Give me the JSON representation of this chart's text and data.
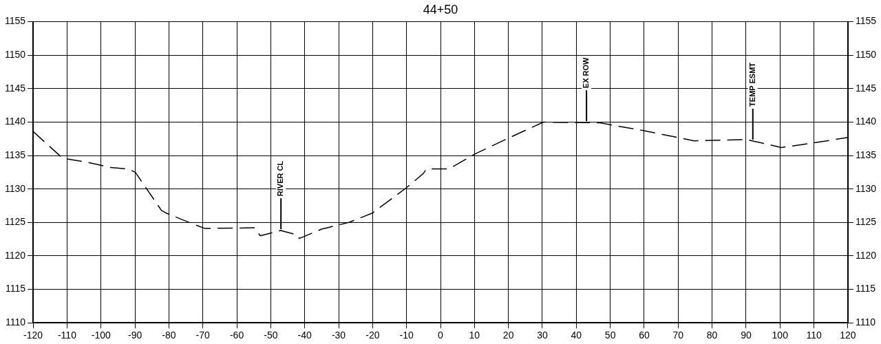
{
  "chart_data": {
    "type": "line",
    "title": "44+50",
    "x": [
      -120,
      -111.3,
      -104,
      -97,
      -92,
      -89.9,
      -82.2,
      -80.8,
      -74,
      -69.4,
      -54.8,
      -53.1,
      -47.1,
      -42,
      -41.6,
      -35,
      -27,
      -20.1,
      -10,
      -5.1,
      -4.1,
      2.5,
      10,
      20,
      30.3,
      46.9,
      50.1,
      60,
      74.7,
      90,
      92.7,
      100.4,
      110,
      120
    ],
    "series": [
      {
        "color": "#000000",
        "values": [
          1138.6,
          1134.6,
          1134,
          1133.2,
          1133,
          1132.5,
          1126.8,
          1126.4,
          1125,
          1124.1,
          1124.2,
          1123,
          1123.8,
          1123.1,
          1122.6,
          1124,
          1125,
          1126.4,
          1130.2,
          1132.3,
          1133,
          1133,
          1135.2,
          1137.6,
          1140,
          1139.9,
          1139.6,
          1138.7,
          1137.2,
          1137.4,
          1137.1,
          1136.2,
          1136.9,
          1137.7
        ]
      }
    ],
    "xlim": [
      -120,
      120
    ],
    "xticks": [
      -120,
      -110,
      -100,
      -90,
      -80,
      -70,
      -60,
      -50,
      -40,
      -30,
      -20,
      -10,
      0,
      10,
      20,
      30,
      40,
      50,
      60,
      70,
      80,
      90,
      100,
      110,
      120
    ],
    "ylim": [
      1110,
      1155
    ],
    "yticks": [
      1110,
      1115,
      1120,
      1125,
      1130,
      1135,
      1140,
      1145,
      1150,
      1155
    ],
    "y2lim": [
      1110,
      1155
    ],
    "y2ticks": [
      1110,
      1115,
      1120,
      1125,
      1130,
      1135,
      1140,
      1145,
      1150,
      1155
    ],
    "ref_lines": [
      {
        "axis": "x",
        "value": -47,
        "label": "RIVER CL"
      },
      {
        "axis": "x",
        "value": 43,
        "label": "EX ROW"
      },
      {
        "axis": "x",
        "value": 92,
        "label": "TEMP ESMT"
      }
    ],
    "grid": true,
    "legend": false,
    "marker": "none",
    "line_style": "dashed"
  }
}
